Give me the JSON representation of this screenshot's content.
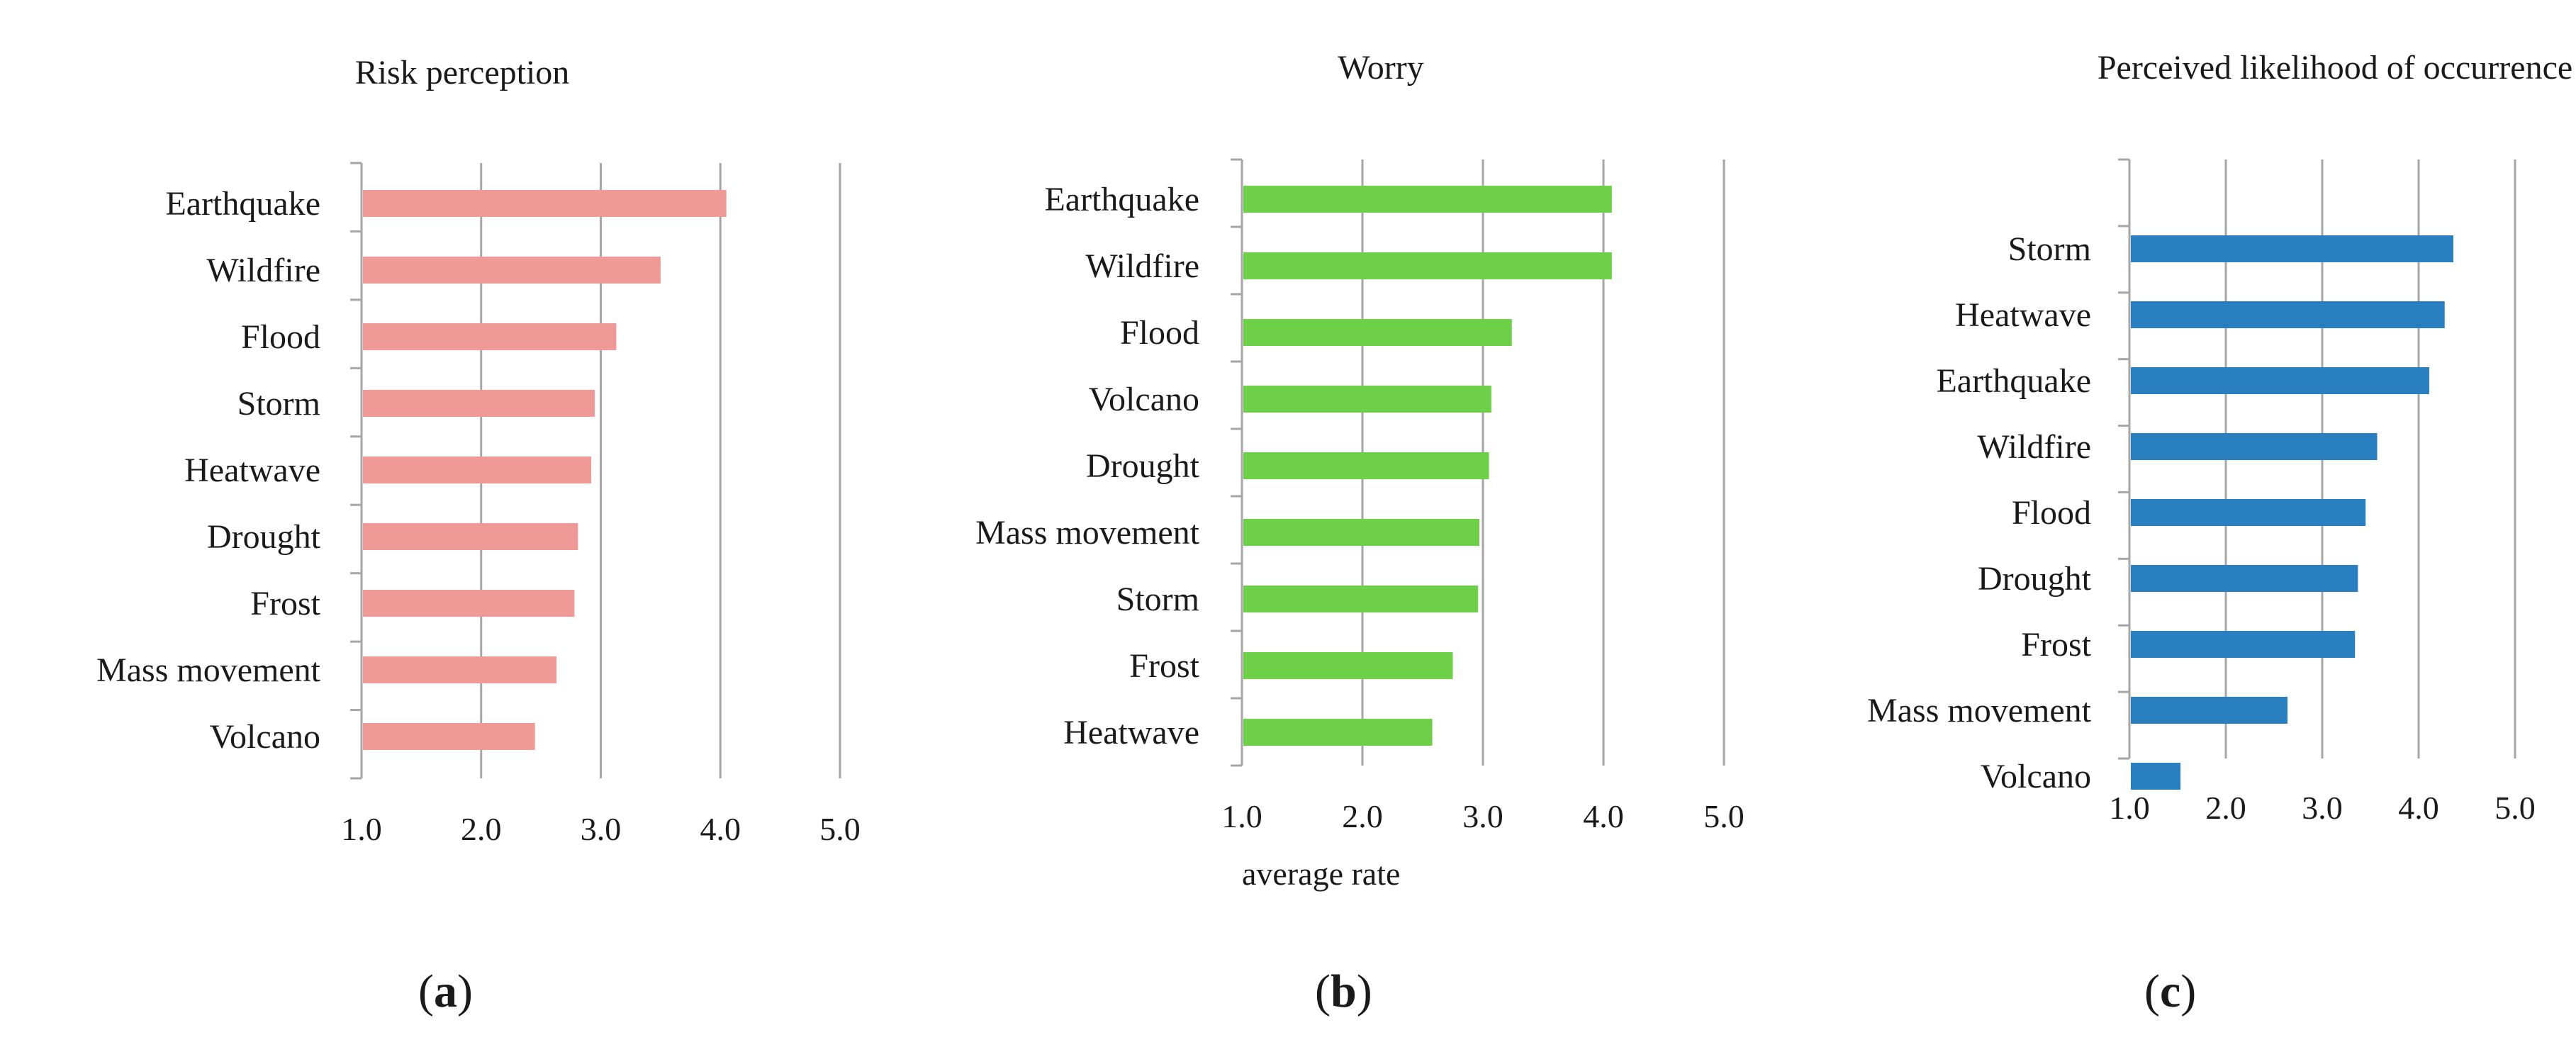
{
  "chart_data": [
    {
      "id": "a",
      "type": "bar",
      "orientation": "horizontal",
      "title": "Risk perception",
      "panel_letter": "a",
      "xlabel": "",
      "color": "#F09A98",
      "xlim": [
        1.0,
        5.0
      ],
      "ticks": [
        "1.0",
        "2.0",
        "3.0",
        "4.0",
        "5.0"
      ],
      "categories": [
        "Earthquake",
        "Wildfire",
        "Flood",
        "Storm",
        "Heatwave",
        "Drought",
        "Frost",
        "Mass movement",
        "Volcano"
      ],
      "values": [
        4.05,
        3.5,
        3.13,
        2.95,
        2.92,
        2.81,
        2.78,
        2.63,
        2.45
      ]
    },
    {
      "id": "b",
      "type": "bar",
      "orientation": "horizontal",
      "title": "Worry",
      "panel_letter": "b",
      "xlabel": "average rate",
      "color": "#6DD048",
      "xlim": [
        1.0,
        5.0
      ],
      "ticks": [
        "1.0",
        "2.0",
        "3.0",
        "4.0",
        "5.0"
      ],
      "categories": [
        "Earthquake",
        "Wildfire",
        "Flood",
        "Volcano",
        "Drought",
        "Mass movement",
        "Storm",
        "Frost",
        "Heatwave"
      ],
      "values": [
        4.07,
        4.07,
        3.24,
        3.07,
        3.05,
        2.97,
        2.96,
        2.75,
        2.58
      ]
    },
    {
      "id": "c",
      "type": "bar",
      "orientation": "horizontal",
      "title": "Perceived likelihood of occurrence",
      "panel_letter": "c",
      "xlabel": "",
      "color": "#2A7FC1",
      "xlim": [
        1.0,
        5.0
      ],
      "ticks": [
        "1.0",
        "2.0",
        "3.0",
        "4.0",
        "5.0"
      ],
      "categories": [
        "Storm",
        "Heatwave",
        "Earthquake",
        "Wildfire",
        "Flood",
        "Drought",
        "Frost",
        "Mass movement",
        "Volcano"
      ],
      "values": [
        4.36,
        4.27,
        4.11,
        3.57,
        3.45,
        3.37,
        3.34,
        2.64,
        1.53
      ]
    }
  ]
}
